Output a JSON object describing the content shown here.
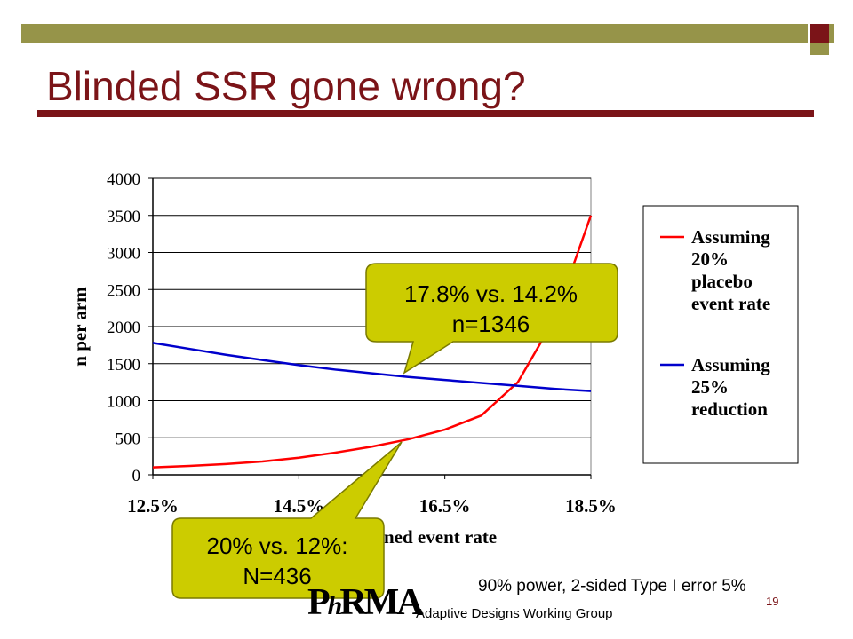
{
  "slide": {
    "title": "Blinded SSR gone wrong?",
    "footer_note": "90% power, 2-sided Type I error 5%",
    "page_number": "19",
    "group_name": "Adaptive Designs Working Group",
    "logo_text": "PhRMA"
  },
  "colors": {
    "title": "#7b1418",
    "bar_olive": "#969449",
    "callout_fill": "#cccc00",
    "series_red": "#ff0000",
    "series_blue": "#0000cc"
  },
  "callouts": [
    {
      "line1": "17.8% vs. 14.2%",
      "line2": "n=1346"
    },
    {
      "line1": "20% vs. 12%:",
      "line2": "N=436"
    }
  ],
  "chart_data": {
    "type": "line",
    "ylabel": "n per arm",
    "xlabel": "ned event rate",
    "x_ticks": [
      "12.5%",
      "14.5%",
      "16.5%",
      "18.5%"
    ],
    "xlim": [
      12.5,
      18.5
    ],
    "ylim": [
      0,
      4000
    ],
    "y_ticks": [
      "0",
      "500",
      "1000",
      "1500",
      "2000",
      "2500",
      "3000",
      "3500",
      "4000"
    ],
    "grid": true,
    "legend_position": "right",
    "x": [
      12.5,
      13.0,
      13.5,
      14.0,
      14.5,
      15.0,
      15.5,
      16.0,
      16.5,
      17.0,
      17.5,
      18.0,
      18.5
    ],
    "series": [
      {
        "name": "Assuming 20% placebo event rate",
        "legend_lines": [
          "Assuming",
          "20%",
          "placebo",
          "event rate"
        ],
        "color": "#ff0000",
        "values": [
          100,
          120,
          145,
          180,
          230,
          300,
          380,
          480,
          610,
          800,
          1250,
          2100,
          3500
        ]
      },
      {
        "name": "Assuming 25% reduction",
        "legend_lines": [
          "Assuming",
          "25%",
          "reduction"
        ],
        "color": "#0000cc",
        "values": [
          1780,
          1700,
          1620,
          1550,
          1480,
          1420,
          1370,
          1320,
          1280,
          1240,
          1200,
          1160,
          1130
        ]
      }
    ]
  }
}
